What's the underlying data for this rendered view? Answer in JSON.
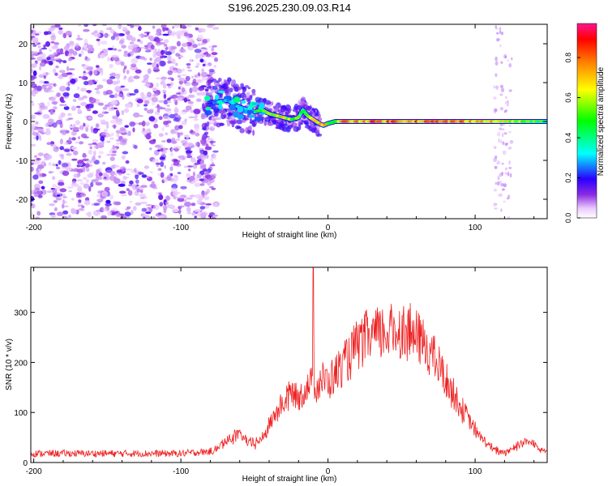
{
  "title": "S196.2025.230.09.03.R14",
  "colors": {
    "axis": "#000000",
    "snr_line": "#ee2222",
    "colormap": [
      "#ffffff",
      "#e9c8ff",
      "#8a2be2",
      "#2a00ff",
      "#00ffff",
      "#00ff00",
      "#ffff00",
      "#ff8000",
      "#ff0000",
      "#ff1493"
    ]
  },
  "chart_data": [
    {
      "type": "heatmap",
      "name": "spectrogram",
      "xlabel": "Height of straight line (km)",
      "ylabel": "Frequency (Hz)",
      "xlim": [
        -202,
        149
      ],
      "ylim": [
        -25,
        25
      ],
      "xticks": [
        -200,
        -100,
        0,
        100
      ],
      "xtick_labels": [
        "-200",
        "-100",
        "0",
        "100"
      ],
      "yticks": [
        -20,
        -10,
        0,
        10,
        20
      ],
      "ytick_labels": [
        "-20",
        "-10",
        "0",
        "10",
        "20"
      ],
      "colorbar": {
        "label": "Normalized spectral amplitude",
        "range": [
          0,
          0.97
        ],
        "ticks": [
          0.0,
          0.2,
          0.4,
          0.6,
          0.8
        ],
        "tick_labels": [
          "0.0",
          "0.2",
          "0.4",
          "0.6",
          "0.8"
        ]
      },
      "signal_track": {
        "height_km": [
          -82,
          -75,
          -68,
          -62,
          -55,
          -50,
          -45,
          -40,
          -35,
          -30,
          -25,
          -20,
          -17,
          -14,
          -10,
          -6,
          -3,
          0,
          5,
          10,
          30,
          60,
          100,
          149
        ],
        "frequency_hz": [
          4.5,
          5.0,
          5.5,
          4.0,
          3.0,
          2.5,
          3.0,
          2.0,
          1.5,
          1.0,
          0.5,
          1.0,
          3.0,
          1.5,
          0.5,
          -0.5,
          -1.0,
          -0.5,
          0.0,
          0.0,
          0.0,
          0.0,
          0.0,
          0.0
        ],
        "amplitude": [
          0.15,
          0.3,
          0.35,
          0.3,
          0.35,
          0.45,
          0.55,
          0.65,
          0.7,
          0.75,
          0.6,
          0.65,
          0.5,
          0.6,
          0.7,
          0.85,
          0.9,
          0.5,
          0.6,
          0.85,
          0.9,
          0.9,
          0.85,
          0.5
        ]
      },
      "noise_region_km": [
        -202,
        -82
      ],
      "noise_level": 0.3
    },
    {
      "type": "line",
      "name": "snr",
      "xlabel": "Height of straight line (km)",
      "ylabel": "SNR (10 * v/v)",
      "xlim": [
        -202,
        149
      ],
      "ylim": [
        0,
        390
      ],
      "xticks": [
        -200,
        -100,
        0,
        100
      ],
      "xtick_labels": [
        "-200",
        "-100",
        "0",
        "100"
      ],
      "yticks": [
        0,
        100,
        200,
        300
      ],
      "ytick_labels": [
        "0",
        "100",
        "200",
        "300"
      ],
      "series": [
        {
          "name": "SNR",
          "x": [
            -202,
            -180,
            -160,
            -140,
            -120,
            -100,
            -90,
            -80,
            -75,
            -70,
            -65,
            -60,
            -55,
            -50,
            -45,
            -40,
            -35,
            -30,
            -25,
            -20,
            -15,
            -11,
            -10,
            -9,
            -5,
            0,
            5,
            10,
            15,
            20,
            25,
            30,
            35,
            40,
            45,
            50,
            55,
            60,
            65,
            70,
            75,
            80,
            85,
            90,
            95,
            100,
            105,
            110,
            115,
            120,
            125,
            130,
            135,
            140,
            145,
            149
          ],
          "y": [
            18,
            18,
            18,
            18,
            18,
            18,
            20,
            22,
            30,
            45,
            55,
            60,
            45,
            40,
            50,
            80,
            110,
            130,
            150,
            140,
            160,
            170,
            390,
            150,
            180,
            170,
            190,
            210,
            230,
            250,
            265,
            270,
            275,
            280,
            285,
            285,
            280,
            270,
            255,
            235,
            210,
            180,
            150,
            120,
            95,
            70,
            50,
            35,
            25,
            22,
            30,
            40,
            45,
            40,
            30,
            22
          ]
        }
      ]
    }
  ]
}
